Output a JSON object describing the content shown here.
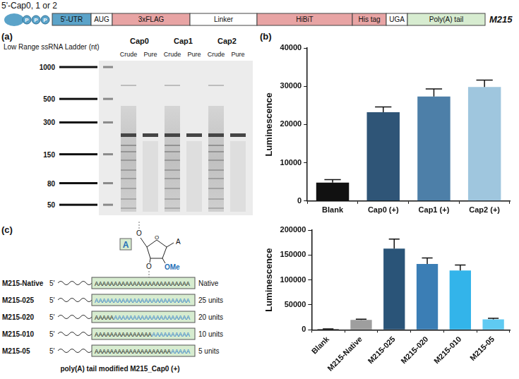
{
  "construct": {
    "cap_label": "5'-Cap0, 1 or 2",
    "phosphate": "P",
    "segments": [
      "5'-UTR",
      "AUG",
      "3xFLAG",
      "Linker",
      "HiBiT",
      "His tag",
      "UGA",
      "Poly(A) tail"
    ],
    "name": "M215"
  },
  "gel": {
    "panel": "(a)",
    "ladder_title": "Low Range ssRNA Ladder (nt)",
    "ladder": [
      1000,
      500,
      300,
      150,
      80,
      50
    ],
    "groups": [
      "Cap0",
      "Cap1",
      "Cap2"
    ],
    "lanes": [
      "Crude",
      "Pure"
    ]
  },
  "schematic": {
    "panel": "(c)",
    "symbol": "A",
    "base": "A",
    "oxygen": "O",
    "substituent": "OMe",
    "five_prime": "5'",
    "rows": [
      {
        "name": "M215-Native",
        "plain": "AAAAAAAAAAAAAAAAAAAAAAAAA",
        "modified": "",
        "label": "Native"
      },
      {
        "name": "M215-025",
        "plain": "",
        "modified": "AAAAAAAAAAAAAAAAAAAAAAAAA",
        "label": "25 units"
      },
      {
        "name": "M215-020",
        "plain": "AAAAA",
        "modified": "AAAAAAAAAAAAAAAAAAAA",
        "label": "20 units"
      },
      {
        "name": "M215-010",
        "plain": "AAAAAAAAAAAAAAA",
        "modified": "AAAAAAAAAA",
        "label": "10 units"
      },
      {
        "name": "M215-05",
        "plain": "AAAAAAAAAAAAAAAAAAAA",
        "modified": "AAAAA",
        "label": "5 units"
      }
    ],
    "caption": "poly(A) tail modified M215_Cap0 (+)"
  },
  "chart_data": [
    {
      "panel": "(b)",
      "type": "bar",
      "y_label": "Luminescence",
      "categories": [
        "Blank",
        "Cap0 (+)",
        "Cap1 (+)",
        "Cap2 (+)"
      ],
      "values": [
        4800,
        23200,
        27300,
        29800
      ],
      "errors": [
        800,
        1400,
        2000,
        1800
      ],
      "colors": [
        "#111111",
        "#2f5577",
        "#4d7fa8",
        "#9fc6de"
      ],
      "ylim": [
        0,
        40000
      ],
      "yticks": [
        0,
        10000,
        20000,
        30000,
        40000
      ],
      "grid": false
    },
    {
      "type": "bar",
      "y_label": "Luminescence",
      "categories": [
        "Blank",
        "M215-Native",
        "M215-025",
        "M215-020",
        "M215-010",
        "M215-05"
      ],
      "values": [
        1500,
        20000,
        163000,
        132000,
        119000,
        21000
      ],
      "errors": [
        400,
        1200,
        19000,
        12000,
        11000,
        2000
      ],
      "colors": [
        "#111111",
        "#9e9e9e",
        "#2a5478",
        "#3b7eb5",
        "#33b4ea",
        "#5fcaf2"
      ],
      "ylim": [
        0,
        200000
      ],
      "yticks": [
        0,
        50000,
        100000,
        150000,
        200000
      ],
      "grid": false
    }
  ]
}
